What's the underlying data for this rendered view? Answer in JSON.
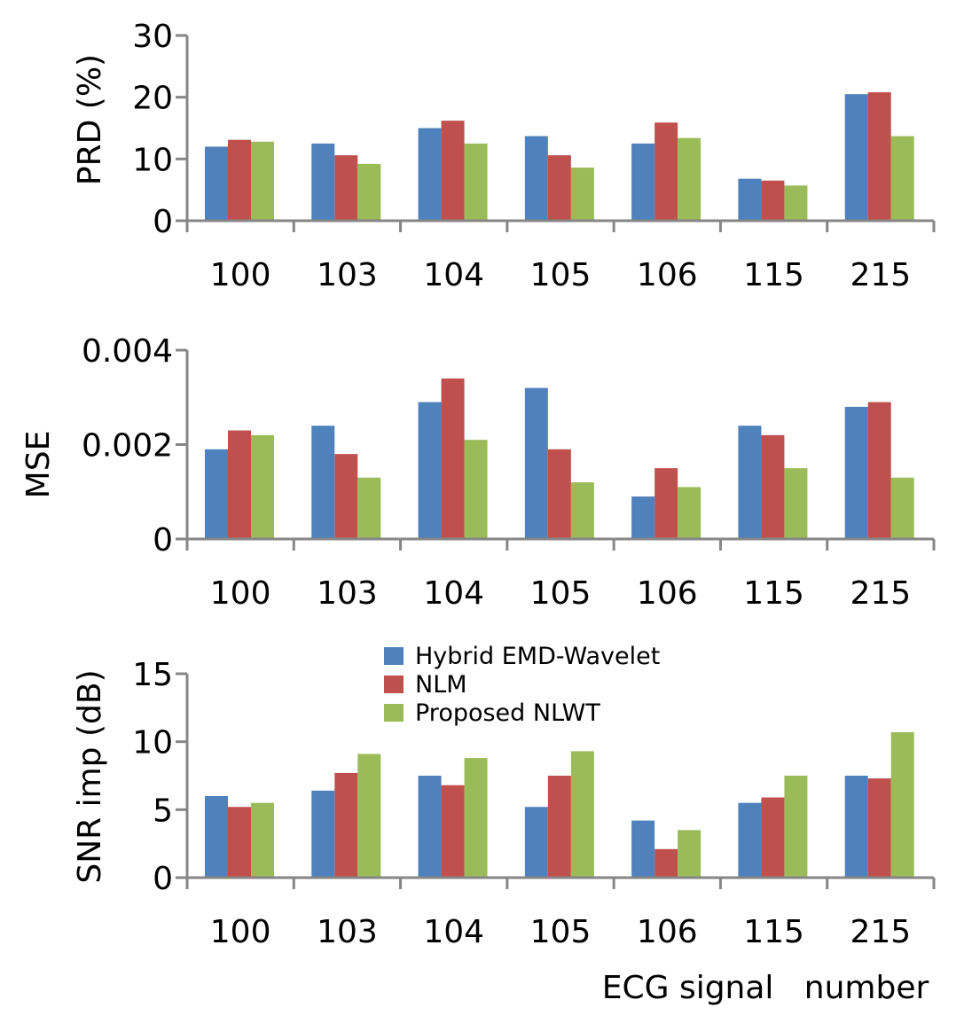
{
  "legend": [
    {
      "name": "Hybrid EMD-Wavelet",
      "color": "#4f81bd"
    },
    {
      "name": "NLM",
      "color": "#c0504d"
    },
    {
      "name": "Proposed NLWT",
      "color": "#9bbb59"
    }
  ],
  "xlabel": "ECG signal   number",
  "chart_data": [
    {
      "type": "bar",
      "title": "",
      "ylabel": "PRD (%)",
      "xlabel": "",
      "categories": [
        "100",
        "103",
        "104",
        "105",
        "106",
        "115",
        "215"
      ],
      "ylim": [
        0,
        30
      ],
      "yticks": [
        "0",
        "10",
        "20",
        "30"
      ],
      "ytick_values": [
        0,
        10,
        20,
        30
      ],
      "series": [
        {
          "name": "Hybrid EMD-Wavelet",
          "color": "#4f81bd",
          "values": [
            12,
            12.5,
            15,
            13.7,
            12.5,
            6.8,
            20.5
          ]
        },
        {
          "name": "NLM",
          "color": "#c0504d",
          "values": [
            13.1,
            10.6,
            16.2,
            10.6,
            15.9,
            6.5,
            20.8
          ]
        },
        {
          "name": "Proposed NLWT",
          "color": "#9bbb59",
          "values": [
            12.8,
            9.2,
            12.5,
            8.6,
            13.4,
            5.7,
            13.7
          ]
        }
      ]
    },
    {
      "type": "bar",
      "title": "",
      "ylabel": "MSE",
      "xlabel": "",
      "categories": [
        "100",
        "103",
        "104",
        "105",
        "106",
        "115",
        "215"
      ],
      "ylim": [
        0,
        0.004
      ],
      "yticks": [
        "0",
        "0.002",
        "0.004"
      ],
      "ytick_values": [
        0,
        0.002,
        0.004
      ],
      "series": [
        {
          "name": "Hybrid EMD-Wavelet",
          "color": "#4f81bd",
          "values": [
            0.0019,
            0.0024,
            0.0029,
            0.0032,
            0.0009,
            0.0024,
            0.0028
          ]
        },
        {
          "name": "NLM",
          "color": "#c0504d",
          "values": [
            0.0023,
            0.0018,
            0.0034,
            0.0019,
            0.0015,
            0.0022,
            0.0029
          ]
        },
        {
          "name": "Proposed NLWT",
          "color": "#9bbb59",
          "values": [
            0.0022,
            0.0013,
            0.0021,
            0.0012,
            0.0011,
            0.0015,
            0.0013
          ]
        }
      ]
    },
    {
      "type": "bar",
      "title": "",
      "ylabel": "SNR imp (dB)",
      "xlabel": "ECG signal   number",
      "categories": [
        "100",
        "103",
        "104",
        "105",
        "106",
        "115",
        "215"
      ],
      "ylim": [
        0,
        15
      ],
      "yticks": [
        "0",
        "5",
        "10",
        "15"
      ],
      "ytick_values": [
        0,
        5,
        10,
        15
      ],
      "legend_position": "top-center",
      "series": [
        {
          "name": "Hybrid EMD-Wavelet",
          "color": "#4f81bd",
          "values": [
            6.0,
            6.4,
            7.5,
            5.2,
            4.2,
            5.5,
            7.5
          ]
        },
        {
          "name": "NLM",
          "color": "#c0504d",
          "values": [
            5.2,
            7.7,
            6.8,
            7.5,
            2.1,
            5.9,
            7.3
          ]
        },
        {
          "name": "Proposed NLWT",
          "color": "#9bbb59",
          "values": [
            5.5,
            9.1,
            8.8,
            9.3,
            3.5,
            7.5,
            10.7
          ]
        }
      ]
    }
  ]
}
